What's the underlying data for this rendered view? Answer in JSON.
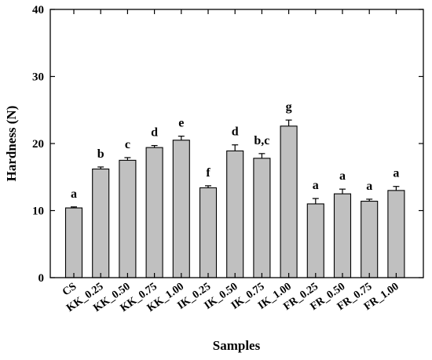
{
  "chart_data": {
    "type": "bar",
    "title": "",
    "xlabel": "Samples",
    "ylabel": "Hardness (N)",
    "ylim": [
      0,
      40
    ],
    "yticks": [
      0,
      10,
      20,
      30,
      40
    ],
    "grid": false,
    "categories": [
      "CS",
      "KK_0.25",
      "KK_0.50",
      "KK_0.75",
      "KK_1.00",
      "IK_0.25",
      "IK_0.50",
      "IK_0.75",
      "IK_1.00",
      "FR_0.25",
      "FR_0.50",
      "FR_0.75",
      "FR_1.00"
    ],
    "values": [
      10.4,
      16.2,
      17.5,
      19.4,
      20.5,
      13.4,
      18.9,
      17.8,
      22.6,
      11.0,
      12.5,
      11.4,
      13.0
    ],
    "errors": [
      0.15,
      0.3,
      0.4,
      0.3,
      0.6,
      0.3,
      0.9,
      0.7,
      0.9,
      0.8,
      0.7,
      0.3,
      0.6
    ],
    "significance": [
      "a",
      "b",
      "c",
      "d",
      "e",
      "f",
      "d",
      "b,c",
      "g",
      "a",
      "a",
      "a",
      "a"
    ],
    "colors": {
      "bar_fill": "#c0c0c0",
      "bar_stroke": "#000000",
      "axis": "#000000"
    }
  }
}
